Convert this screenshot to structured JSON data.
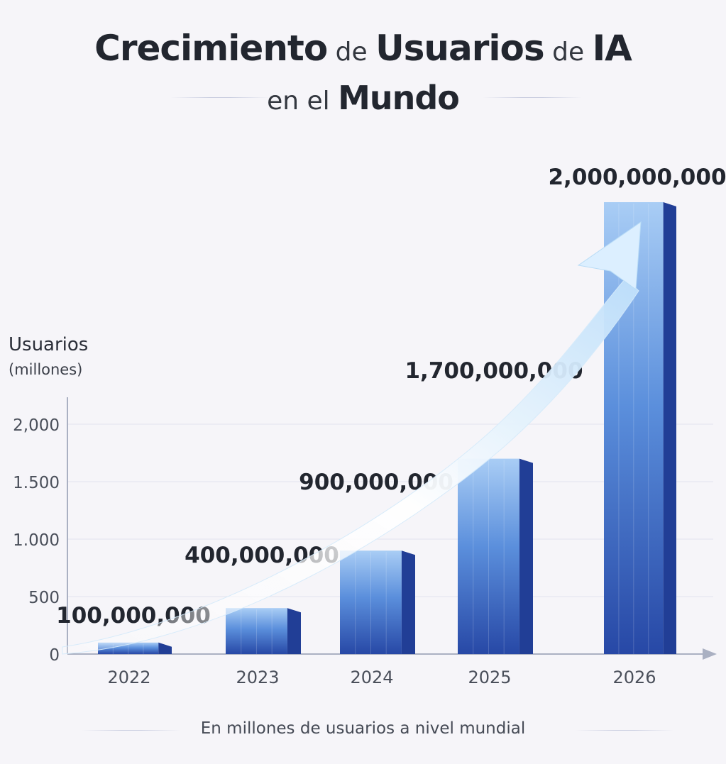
{
  "title": {
    "line1": [
      {
        "text": "Crecimiento",
        "style": "strong"
      },
      {
        "text": " de ",
        "style": "light"
      },
      {
        "text": "Usuarios",
        "style": "strong"
      },
      {
        "text": " de ",
        "style": "light"
      },
      {
        "text": "IA",
        "style": "strong"
      }
    ],
    "line2": [
      {
        "text": "en el ",
        "style": "light"
      },
      {
        "text": "Mundo",
        "style": "strong"
      }
    ]
  },
  "footer": "En millones de usuarios a nivel mundial",
  "colors": {
    "bar_top": "#a9cdf5",
    "bar_mid": "#5b8fdc",
    "bar_bottom": "#2748a6",
    "bar_side": "#213e96",
    "axis": "#aab0c2",
    "grid": "#e2e4ee",
    "arrow": "#e9f5ff"
  },
  "chart_data": {
    "type": "bar",
    "title": "",
    "ylabel": "Usuarios",
    "ylabel_sub": "(millones)",
    "xlabel": "",
    "categories": [
      "2022",
      "2023",
      "2024",
      "2025",
      "2026"
    ],
    "values": [
      100,
      400,
      900,
      1700,
      2000
    ],
    "data_labels": [
      "100,000,000",
      "400,000,000",
      "900,000,000",
      "1,700,000,000",
      "2,000,000,000"
    ],
    "y_ticks": [
      {
        "value": 0,
        "label": "0"
      },
      {
        "value": 500,
        "label": "500"
      },
      {
        "value": 1000,
        "label": "1.000"
      },
      {
        "value": 1500,
        "label": "1.500"
      },
      {
        "value": 2000,
        "label": "2,000"
      }
    ],
    "ylim": [
      0,
      2000
    ],
    "grid": true,
    "trend_arrow": true
  }
}
